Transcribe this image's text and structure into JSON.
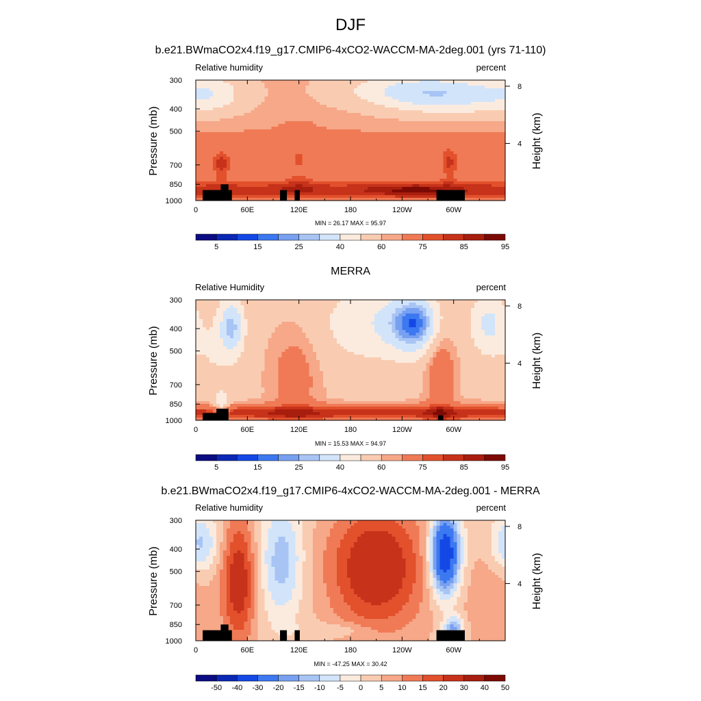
{
  "figure": {
    "title": "DJF"
  },
  "chart_data": [
    {
      "type": "heatmap",
      "title": "b.e21.BWmaCO2x4.f19_g17.CMIP6-4xCO2-WACCM-MA-2deg.001 (yrs 71-110)",
      "left_label": "Relative humidity",
      "right_label": "percent",
      "ylabel": "Pressure (mb)",
      "ylabel_right": "Height (km)",
      "xticks": [
        "0",
        "60E",
        "120E",
        "180",
        "120W",
        "60W"
      ],
      "yticks": [
        "300",
        "400",
        "500",
        "700",
        "850",
        "1000"
      ],
      "yticks_right": [
        "8",
        "4"
      ],
      "xlim": [
        0,
        360
      ],
      "ylim": [
        1000,
        300
      ],
      "y_scale": "log",
      "stats": "MIN =  26.17  MAX =  95.97",
      "colorbar_labels": [
        "5",
        "15",
        "25",
        "40",
        "60",
        "75",
        "85",
        "95"
      ],
      "field": {
        "base": 62,
        "blobs": [
          {
            "lon": 300,
            "p": 350,
            "slon": 60,
            "sp": 0.14,
            "amp": -24
          },
          {
            "lon": 240,
            "p": 330,
            "slon": 55,
            "sp": 0.12,
            "amp": -14
          },
          {
            "lon": 20,
            "p": 340,
            "slon": 25,
            "sp": 0.14,
            "amp": -12
          },
          {
            "lon": 0,
            "p": 900,
            "slon": 999,
            "sp": 0.07,
            "amp": 20
          },
          {
            "lon": 255,
            "p": 910,
            "slon": 35,
            "sp": 0.05,
            "amp": 10
          },
          {
            "lon": 30,
            "p": 700,
            "slon": 8,
            "sp": 0.1,
            "amp": 16
          },
          {
            "lon": 295,
            "p": 690,
            "slon": 8,
            "sp": 0.12,
            "amp": 14
          },
          {
            "lon": 120,
            "p": 700,
            "slon": 15,
            "sp": 0.25,
            "amp": 8
          },
          {
            "lon": 0,
            "p": 620,
            "slon": 999,
            "sp": 0.2,
            "amp": 6
          }
        ]
      },
      "topography": [
        {
          "lon0": 8,
          "lon1": 42,
          "p": 900
        },
        {
          "lon0": 29,
          "lon1": 38,
          "p": 850
        },
        {
          "lon0": 98,
          "lon1": 106,
          "p": 900
        },
        {
          "lon0": 115,
          "lon1": 121,
          "p": 900
        },
        {
          "lon0": 280,
          "lon1": 313,
          "p": 900
        }
      ]
    },
    {
      "type": "heatmap",
      "title": "MERRA",
      "left_label": "Relative Humidity",
      "right_label": "percent",
      "ylabel": "Pressure (mb)",
      "ylabel_right": "Height (km)",
      "xticks": [
        "0",
        "60E",
        "120E",
        "180",
        "120W",
        "60W"
      ],
      "yticks": [
        "300",
        "400",
        "500",
        "700",
        "850",
        "1000"
      ],
      "yticks_right": [
        "8",
        "4"
      ],
      "xlim": [
        0,
        360
      ],
      "ylim": [
        1000,
        300
      ],
      "y_scale": "log",
      "stats": "MIN =  15.53  MAX =  94.97",
      "colorbar_labels": [
        "5",
        "15",
        "25",
        "40",
        "60",
        "75",
        "85",
        "95"
      ],
      "field": {
        "base": 58,
        "blobs": [
          {
            "lon": 255,
            "p": 380,
            "slon": 22,
            "sp": 0.2,
            "amp": -38
          },
          {
            "lon": 200,
            "p": 380,
            "slon": 40,
            "sp": 0.28,
            "amp": -15
          },
          {
            "lon": 42,
            "p": 390,
            "slon": 10,
            "sp": 0.2,
            "amp": -28
          },
          {
            "lon": 340,
            "p": 380,
            "slon": 15,
            "sp": 0.22,
            "amp": -20
          },
          {
            "lon": 20,
            "p": 500,
            "slon": 20,
            "sp": 0.3,
            "amp": -8
          },
          {
            "lon": 0,
            "p": 930,
            "slon": 999,
            "sp": 0.06,
            "amp": 25
          },
          {
            "lon": 115,
            "p": 650,
            "slon": 20,
            "sp": 0.35,
            "amp": 12
          },
          {
            "lon": 285,
            "p": 600,
            "slon": 12,
            "sp": 0.4,
            "amp": 16
          },
          {
            "lon": 30,
            "p": 850,
            "slon": 6,
            "sp": 0.08,
            "amp": -20
          }
        ]
      },
      "topography": [
        {
          "lon0": 8,
          "lon1": 38,
          "p": 930
        },
        {
          "lon0": 24,
          "lon1": 38,
          "p": 890
        },
        {
          "lon0": 282,
          "lon1": 288,
          "p": 950
        }
      ]
    },
    {
      "type": "heatmap",
      "title": "b.e21.BWmaCO2x4.f19_g17.CMIP6-4xCO2-WACCM-MA-2deg.001 - MERRA",
      "left_label": "Relative humidity",
      "right_label": "percent",
      "ylabel": "Pressure (mb)",
      "ylabel_right": "Height (km)",
      "xticks": [
        "0",
        "60E",
        "120E",
        "180",
        "120W",
        "60W"
      ],
      "yticks": [
        "300",
        "400",
        "500",
        "700",
        "850",
        "1000"
      ],
      "yticks_right": [
        "8",
        "4"
      ],
      "xlim": [
        0,
        360
      ],
      "ylim": [
        1000,
        300
      ],
      "y_scale": "log",
      "stats": "MIN = -47.25  MAX =  30.42",
      "colorbar_labels": [
        "-50",
        "-40",
        "-30",
        "-20",
        "-15",
        "-10",
        "-5",
        "0",
        "5",
        "10",
        "15",
        "20",
        "30",
        "40",
        "50"
      ],
      "field": {
        "base": 3,
        "blobs": [
          {
            "lon": 290,
            "p": 420,
            "slon": 12,
            "sp": 0.28,
            "amp": -45
          },
          {
            "lon": 210,
            "p": 480,
            "slon": 40,
            "sp": 0.45,
            "amp": 24
          },
          {
            "lon": 50,
            "p": 550,
            "slon": 14,
            "sp": 0.45,
            "amp": 22
          },
          {
            "lon": 100,
            "p": 450,
            "slon": 18,
            "sp": 0.4,
            "amp": -16
          },
          {
            "lon": 5,
            "p": 380,
            "slon": 15,
            "sp": 0.2,
            "amp": -15
          },
          {
            "lon": 345,
            "p": 700,
            "slon": 25,
            "sp": 0.4,
            "amp": 6
          },
          {
            "lon": 300,
            "p": 880,
            "slon": 8,
            "sp": 0.08,
            "amp": -20
          },
          {
            "lon": 165,
            "p": 900,
            "slon": 30,
            "sp": 0.05,
            "amp": -6
          }
        ]
      },
      "topography": [
        {
          "lon0": 8,
          "lon1": 42,
          "p": 900
        },
        {
          "lon0": 29,
          "lon1": 38,
          "p": 850
        },
        {
          "lon0": 98,
          "lon1": 106,
          "p": 900
        },
        {
          "lon0": 115,
          "lon1": 121,
          "p": 900
        },
        {
          "lon0": 280,
          "lon1": 313,
          "p": 900
        }
      ]
    }
  ],
  "colormaps": {
    "rh_levels": [
      5,
      10,
      15,
      20,
      25,
      30,
      40,
      50,
      60,
      65,
      75,
      80,
      85,
      90,
      95
    ],
    "rh_colors": [
      "#0c0c82",
      "#0a28b4",
      "#1448e6",
      "#3c78f0",
      "#78a0f0",
      "#a8c4f4",
      "#d2e4fa",
      "#fbebde",
      "#f9ccb2",
      "#f6a888",
      "#f07a56",
      "#e2502c",
      "#c6321a",
      "#a81e0e",
      "#7c0a04"
    ],
    "diff_levels": [
      -50,
      -40,
      -30,
      -20,
      -15,
      -10,
      -5,
      0,
      5,
      10,
      15,
      20,
      30,
      40,
      50
    ],
    "diff_colors": [
      "#0c0c82",
      "#0a28b4",
      "#1448e6",
      "#3c78f0",
      "#78a0f0",
      "#a8c4f4",
      "#d2e4fa",
      "#fbebde",
      "#f9ccb2",
      "#f6a888",
      "#f07a56",
      "#e2502c",
      "#c6321a",
      "#a81e0e",
      "#7c0a04"
    ],
    "colorbar_tick_every": 2,
    "colorbar_tick_offset": 1
  }
}
